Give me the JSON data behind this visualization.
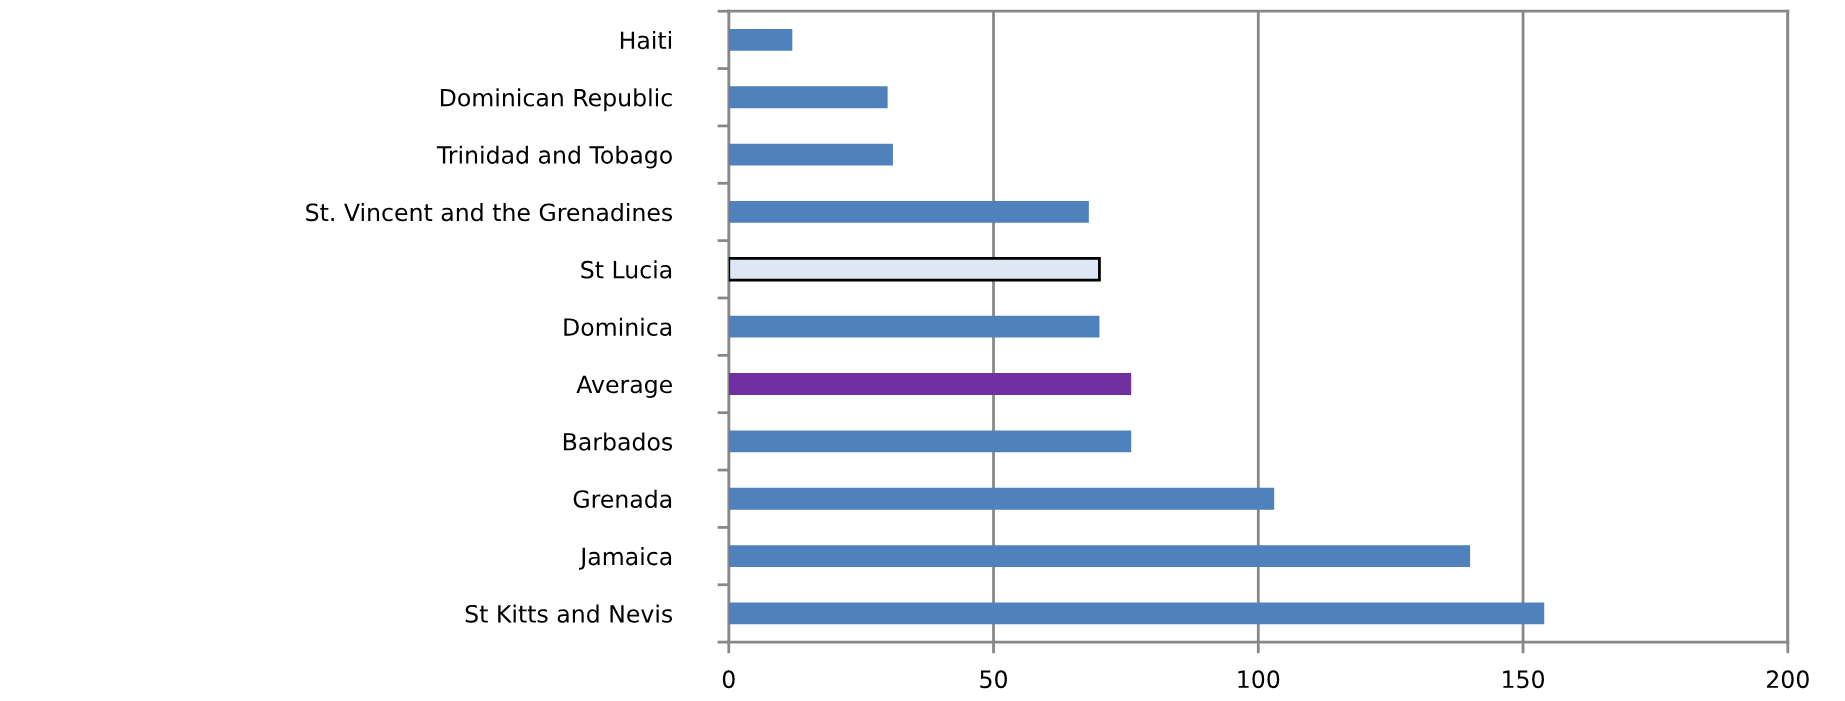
{
  "chart_data": {
    "type": "bar",
    "orientation": "horizontal",
    "categories": [
      "Haiti",
      "Dominican Republic",
      "Trinidad and Tobago",
      "St. Vincent and the Grenadines",
      "St Lucia",
      "Dominica",
      "Average",
      "Barbados",
      "Grenada",
      "Jamaica",
      "St Kitts and Nevis"
    ],
    "values": [
      12,
      30,
      31,
      68,
      70,
      70,
      76,
      76,
      103,
      140,
      154
    ],
    "colors": [
      "#4f81bd",
      "#4f81bd",
      "#4f81bd",
      "#4f81bd",
      "#dfe6f4",
      "#4f81bd",
      "#7030a0",
      "#4f81bd",
      "#4f81bd",
      "#4f81bd",
      "#4f81bd"
    ],
    "xlim": [
      0,
      200
    ],
    "xticks": [
      0,
      50,
      100,
      150,
      200
    ],
    "grid": "x"
  }
}
